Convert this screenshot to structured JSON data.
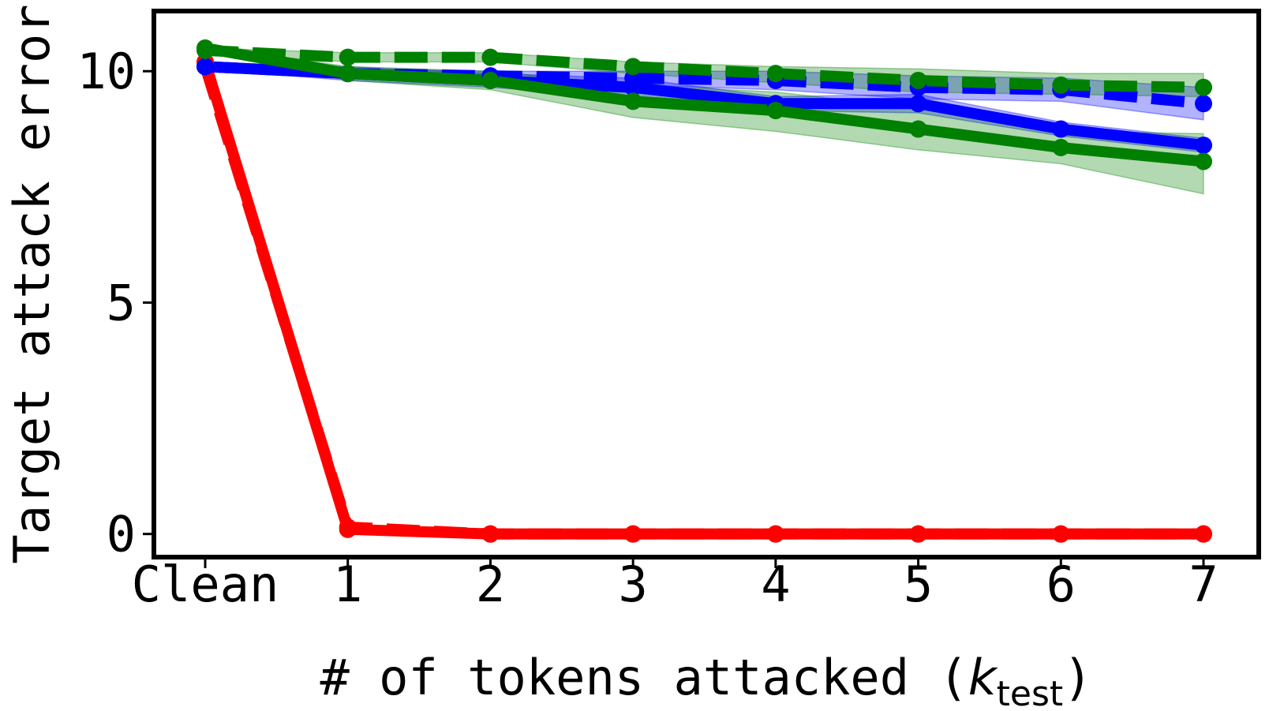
{
  "chart_data": {
    "type": "line",
    "title": "",
    "xlabel": "# of tokens attacked (",
    "xlabel_var": "k",
    "xlabel_sub": "test",
    "xlabel_close": ")",
    "ylabel": "Target attack error",
    "categories": [
      "Clean",
      "1",
      "2",
      "3",
      "4",
      "5",
      "6",
      "7"
    ],
    "yticks": [
      "0",
      "5",
      "10"
    ],
    "ylim": [
      -0.5,
      11.3
    ],
    "grid": false,
    "legend": "none",
    "series": [
      {
        "color": "#ff0000",
        "style": "dashed",
        "values": [
          10.1,
          0.15,
          0.0,
          0.0,
          0.0,
          0.0,
          0.0,
          0.0
        ],
        "band": null
      },
      {
        "color": "#ff0000",
        "style": "solid",
        "values": [
          10.2,
          0.1,
          0.0,
          0.0,
          0.0,
          0.0,
          0.0,
          0.0
        ],
        "band": null
      },
      {
        "color": "#0000ff",
        "style": "solid",
        "values": [
          10.1,
          9.95,
          9.8,
          9.65,
          9.3,
          9.3,
          8.75,
          8.4
        ],
        "band": {
          "lower": [
            10.05,
            9.8,
            9.65,
            9.45,
            9.15,
            9.1,
            8.6,
            8.25
          ],
          "upper": [
            10.15,
            10.1,
            9.95,
            9.85,
            9.45,
            9.5,
            8.9,
            8.55
          ]
        }
      },
      {
        "color": "#0000ff",
        "style": "dashed",
        "values": [
          10.1,
          9.95,
          9.9,
          9.85,
          9.8,
          9.65,
          9.6,
          9.3
        ],
        "band": {
          "lower": [
            10.05,
            9.85,
            9.8,
            9.7,
            9.6,
            9.4,
            9.35,
            8.95
          ],
          "upper": [
            10.15,
            10.05,
            10.0,
            10.0,
            10.0,
            9.9,
            9.85,
            9.65
          ]
        }
      },
      {
        "color": "#008000",
        "style": "solid",
        "values": [
          10.5,
          9.95,
          9.8,
          9.35,
          9.15,
          8.75,
          8.35,
          8.05
        ],
        "band": {
          "lower": [
            10.45,
            9.8,
            9.6,
            9.0,
            8.7,
            8.3,
            8.0,
            7.35
          ],
          "upper": [
            10.55,
            10.1,
            10.0,
            9.7,
            9.55,
            9.2,
            8.7,
            8.65
          ]
        }
      },
      {
        "color": "#008000",
        "style": "dashed",
        "values": [
          10.45,
          10.3,
          10.3,
          10.1,
          9.95,
          9.8,
          9.7,
          9.65
        ],
        "band": {
          "lower": [
            10.4,
            10.2,
            10.2,
            9.95,
            9.75,
            9.55,
            9.5,
            9.45
          ],
          "upper": [
            10.5,
            10.4,
            10.4,
            10.2,
            10.1,
            10.05,
            9.95,
            9.95
          ]
        }
      }
    ]
  }
}
